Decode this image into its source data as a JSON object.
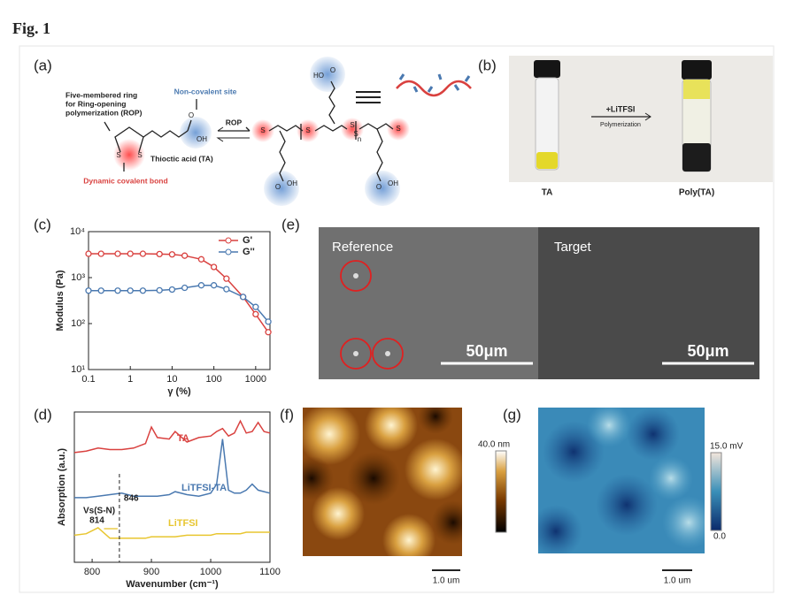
{
  "figure_label": "Fig. 1",
  "panels": {
    "a": {
      "label": "(a)",
      "ring_note": [
        "Five-membered ring",
        "for Ring-opening",
        "polymerization (ROP)"
      ],
      "site": "Non-covalent site",
      "monomer": "Thioctic acid (TA)",
      "bond": "Dynamic covalent bond",
      "arrow": "ROP",
      "atoms": [
        "S",
        "S",
        "O",
        "OH",
        "HO",
        "O",
        "S",
        "S",
        "S",
        "S",
        "S",
        "n",
        "O",
        "OH",
        "O",
        "OH"
      ]
    },
    "b": {
      "label": "(b)",
      "reagent": "+LiTFSI",
      "process": "Polymerization",
      "left": "TA",
      "right": "Poly(TA)"
    },
    "e": {
      "label": "(e)",
      "left": "Reference",
      "right": "Target",
      "scale_left": "50μm",
      "scale_right": "50μm"
    },
    "f": {
      "label": "(f)",
      "colorbar_max": "40.0 nm",
      "scale": "1.0 um"
    },
    "g": {
      "label": "(g)",
      "colorbar_max": "15.0 mV",
      "colorbar_min": "0.0",
      "scale": "1.0 um"
    }
  },
  "chart_data": [
    {
      "type": "line",
      "panel": "(c)",
      "xlabel": "γ (%)",
      "ylabel": "Modulus (Pa)",
      "xscale": "log",
      "yscale": "log",
      "x": [
        0.1,
        0.2,
        0.5,
        1,
        2,
        5,
        10,
        20,
        50,
        100,
        200,
        500,
        1000,
        2000
      ],
      "series": [
        {
          "name": "G'",
          "color": "#d9413f",
          "values": [
            3300,
            3300,
            3300,
            3300,
            3300,
            3250,
            3200,
            3000,
            2500,
            1700,
            950,
            380,
            160,
            65
          ]
        },
        {
          "name": "G''",
          "color": "#4a79b0",
          "values": [
            520,
            520,
            520,
            520,
            520,
            530,
            550,
            600,
            680,
            680,
            560,
            380,
            230,
            110
          ]
        }
      ],
      "xlim": [
        0.1,
        2200
      ],
      "ylim": [
        10,
        10000
      ],
      "xticks": [
        0.1,
        1,
        10,
        100,
        1000
      ],
      "yticks": [
        {
          "value": 10,
          "label": "10¹"
        },
        {
          "value": 100,
          "label": "10²"
        },
        {
          "value": 1000,
          "label": "10³"
        },
        {
          "value": 10000,
          "label": "10⁴"
        }
      ],
      "legend": "upper right"
    },
    {
      "type": "line",
      "panel": "(d)",
      "xlabel": "Wavenumber (cm⁻¹)",
      "ylabel": "Absorption (a.u.)",
      "x": [
        770,
        790,
        810,
        830,
        850,
        870,
        890,
        900,
        910,
        930,
        940,
        960,
        980,
        1000,
        1010,
        1020,
        1030,
        1040,
        1050,
        1060,
        1070,
        1080,
        1090,
        1100
      ],
      "series": [
        {
          "name": "TA",
          "color": "#d9413f",
          "values": [
            7.3,
            7.4,
            7.6,
            7.5,
            7.5,
            7.6,
            7.9,
            9.0,
            8.3,
            8.2,
            8.7,
            8.0,
            8.3,
            8.4,
            8.7,
            8.9,
            8.4,
            8.6,
            9.4,
            8.6,
            8.7,
            9.3,
            8.7,
            8.6
          ]
        },
        {
          "name": "LiTFSI-TA",
          "color": "#4a79b0",
          "values": [
            4.3,
            4.3,
            4.4,
            4.5,
            4.6,
            4.4,
            4.4,
            4.4,
            4.4,
            4.5,
            4.7,
            4.5,
            4.4,
            4.6,
            5.2,
            8.2,
            4.8,
            4.6,
            4.6,
            4.8,
            5.2,
            4.8,
            4.7,
            4.6
          ]
        },
        {
          "name": "LiTFSI",
          "color": "#e8c630",
          "values": [
            1.8,
            1.9,
            2.3,
            1.6,
            1.6,
            1.6,
            1.6,
            1.7,
            1.7,
            1.7,
            1.7,
            1.8,
            1.8,
            1.8,
            1.9,
            1.9,
            1.9,
            1.9,
            1.9,
            2.0,
            2.0,
            2.0,
            2.0,
            2.0
          ]
        }
      ],
      "xlim": [
        770,
        1100
      ],
      "ylim": [
        0,
        10
      ],
      "xticks": [
        800,
        900,
        1000,
        1100
      ],
      "annotations": [
        {
          "label": "846",
          "x": 846
        },
        {
          "label": "Vs(S-N)"
        },
        {
          "label": "814",
          "x": 814
        }
      ]
    }
  ]
}
